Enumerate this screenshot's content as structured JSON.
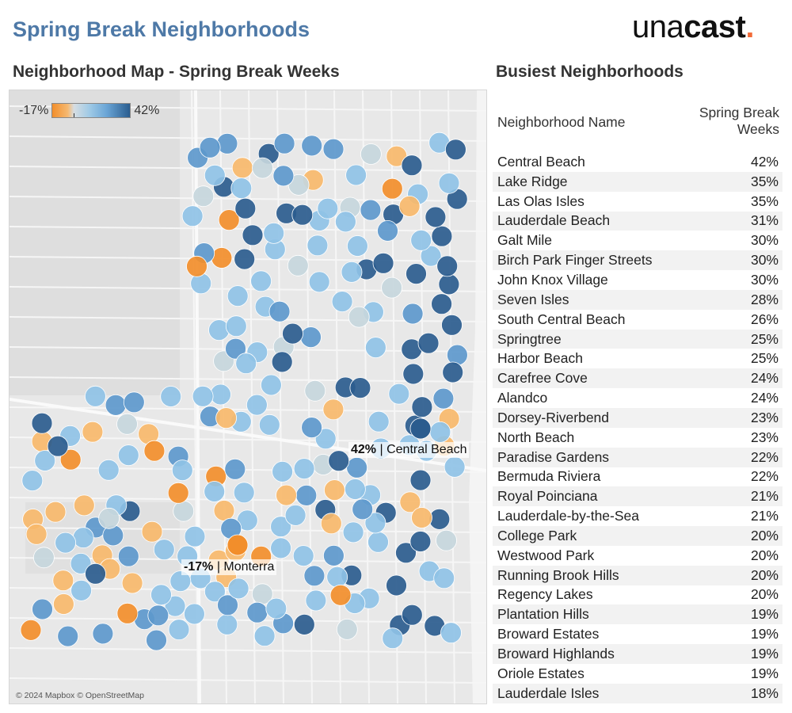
{
  "header": {
    "title": "Spring Break Neighborhoods",
    "logo_regular": "una",
    "logo_bold": "cast",
    "logo_dot": "."
  },
  "map": {
    "title": "Neighborhood Map - Spring Break Weeks",
    "legend": {
      "min_label": "-17%",
      "max_label": "42%"
    },
    "attribution": "© 2024 Mapbox © OpenStreetMap",
    "callouts": [
      {
        "value": "42%",
        "name": "| Central Beach"
      },
      {
        "value": "-17%",
        "name": "| Monterra"
      }
    ],
    "colors": {
      "strong_orange": "#f28e2b",
      "light_orange": "#f7b96b",
      "neutral": "#c5d6dc",
      "light_blue": "#8fc2e6",
      "mid_blue": "#5d98cc",
      "dark_blue": "#2b5c8e"
    }
  },
  "table": {
    "title": "Busiest Neighborhoods",
    "col_name": "Neighborhood Name",
    "col_value_line1": "Spring Break",
    "col_value_line2": "Weeks",
    "rows": [
      {
        "name": "Central Beach",
        "value": "42%"
      },
      {
        "name": "Lake Ridge",
        "value": "35%"
      },
      {
        "name": "Las Olas Isles",
        "value": "35%"
      },
      {
        "name": "Lauderdale Beach",
        "value": "31%"
      },
      {
        "name": "Galt Mile",
        "value": "30%"
      },
      {
        "name": "Birch Park Finger Streets",
        "value": "30%"
      },
      {
        "name": "John Knox Village",
        "value": "30%"
      },
      {
        "name": "Seven Isles",
        "value": "28%"
      },
      {
        "name": "South Central Beach",
        "value": "26%"
      },
      {
        "name": "Springtree",
        "value": "25%"
      },
      {
        "name": "Harbor Beach",
        "value": "25%"
      },
      {
        "name": "Carefree Cove",
        "value": "24%"
      },
      {
        "name": "Alandco",
        "value": "24%"
      },
      {
        "name": "Dorsey-Riverbend",
        "value": "23%"
      },
      {
        "name": "North Beach",
        "value": "23%"
      },
      {
        "name": "Paradise Gardens",
        "value": "22%"
      },
      {
        "name": "Bermuda Riviera",
        "value": "22%"
      },
      {
        "name": "Royal Poinciana",
        "value": "21%"
      },
      {
        "name": "Lauderdale-by-the-Sea",
        "value": "21%"
      },
      {
        "name": "College Park",
        "value": "20%"
      },
      {
        "name": "Westwood Park",
        "value": "20%"
      },
      {
        "name": "Running Brook Hills",
        "value": "20%"
      },
      {
        "name": "Regency Lakes",
        "value": "20%"
      },
      {
        "name": "Plantation Hills",
        "value": "19%"
      },
      {
        "name": "Broward Estates",
        "value": "19%"
      },
      {
        "name": "Broward Highlands",
        "value": "19%"
      },
      {
        "name": "Oriole Estates",
        "value": "19%"
      },
      {
        "name": "Lauderdale Isles",
        "value": "18%"
      }
    ]
  }
}
